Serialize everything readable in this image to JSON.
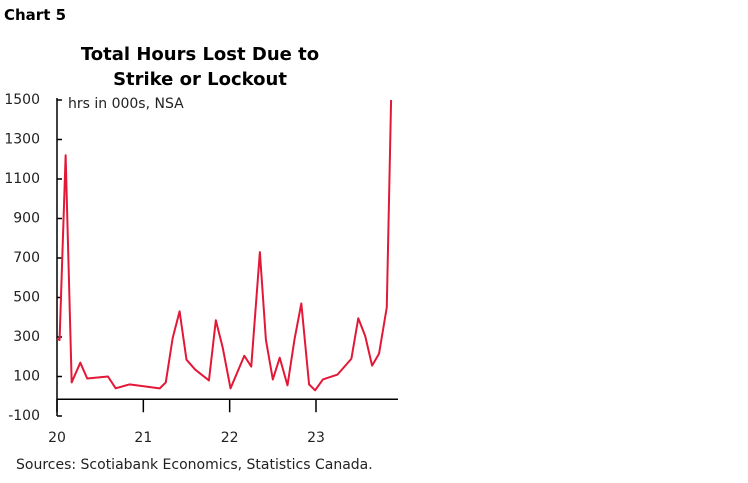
{
  "header": "Chart 5",
  "chart_data": {
    "type": "line",
    "title": "Total Hours Lost Due to Strike or Lockout",
    "subtitle": "hrs in 000s, NSA",
    "source": "Sources: Scotiabank Economics, Statistics Canada.",
    "x": [
      20.0,
      20.03,
      20.1,
      20.17,
      20.27,
      20.35,
      20.59,
      20.68,
      20.84,
      21.19,
      21.26,
      21.34,
      21.42,
      21.5,
      21.6,
      21.76,
      21.84,
      21.92,
      22.01,
      22.17,
      22.25,
      22.35,
      22.42,
      22.5,
      22.58,
      22.67,
      22.75,
      22.83,
      22.92,
      22.99,
      23.08,
      23.25,
      23.41,
      23.49,
      23.57,
      23.65,
      23.73,
      23.82,
      23.87
    ],
    "series": [
      {
        "color": "#e31837",
        "values": [
          290,
          285,
          1220,
          70,
          170,
          90,
          100,
          40,
          60,
          40,
          70,
          295,
          430,
          185,
          135,
          80,
          385,
          245,
          40,
          205,
          150,
          730,
          285,
          85,
          195,
          55,
          285,
          470,
          60,
          30,
          85,
          110,
          190,
          395,
          305,
          155,
          215,
          450,
          1500
        ]
      }
    ],
    "xlim": [
      20,
      23.95
    ],
    "xticks": [
      20,
      21,
      22,
      23
    ],
    "ylim": [
      -100,
      1500
    ],
    "yticks": [
      -100,
      100,
      300,
      500,
      700,
      900,
      1100,
      1300,
      1500
    ]
  }
}
